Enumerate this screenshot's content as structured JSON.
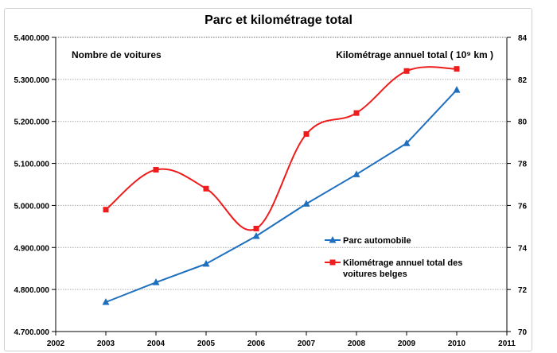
{
  "chart_data": {
    "type": "line",
    "title": "Parc et kilométrage total",
    "ylabel_left": "Nombre de voitures",
    "ylabel_right": "Kilométrage annuel total ( 10⁹ km )",
    "x": [
      2003,
      2004,
      2005,
      2006,
      2007,
      2008,
      2009,
      2010
    ],
    "xlim": [
      2002,
      2011
    ],
    "x_ticks": [
      "2002",
      "2003",
      "2004",
      "2005",
      "2006",
      "2007",
      "2008",
      "2009",
      "2010",
      "2011"
    ],
    "ylim_left": [
      4700000,
      5400000
    ],
    "y_ticks_left": [
      "4.700.000",
      "4.800.000",
      "4.900.000",
      "5.000.000",
      "5.100.000",
      "5.200.000",
      "5.300.000",
      "5.400.000"
    ],
    "ylim_right": [
      70,
      84
    ],
    "y_ticks_right": [
      "70",
      "72",
      "74",
      "76",
      "78",
      "80",
      "82",
      "84"
    ],
    "grid": true,
    "legend_position": "center-right",
    "series": [
      {
        "name": "Parc automobile",
        "axis": "left",
        "color": "#1f6fbf",
        "marker": "triangle",
        "smooth": false,
        "values": [
          4770000,
          4817000,
          4861000,
          4927000,
          5004000,
          5074000,
          5148000,
          5275000
        ]
      },
      {
        "name": "Kilométrage annuel total des voitures belges",
        "axis": "right",
        "color": "#ee1c1c",
        "marker": "square",
        "smooth": true,
        "values": [
          75.8,
          77.7,
          76.8,
          74.9,
          79.4,
          80.4,
          82.4,
          82.5
        ]
      }
    ]
  }
}
